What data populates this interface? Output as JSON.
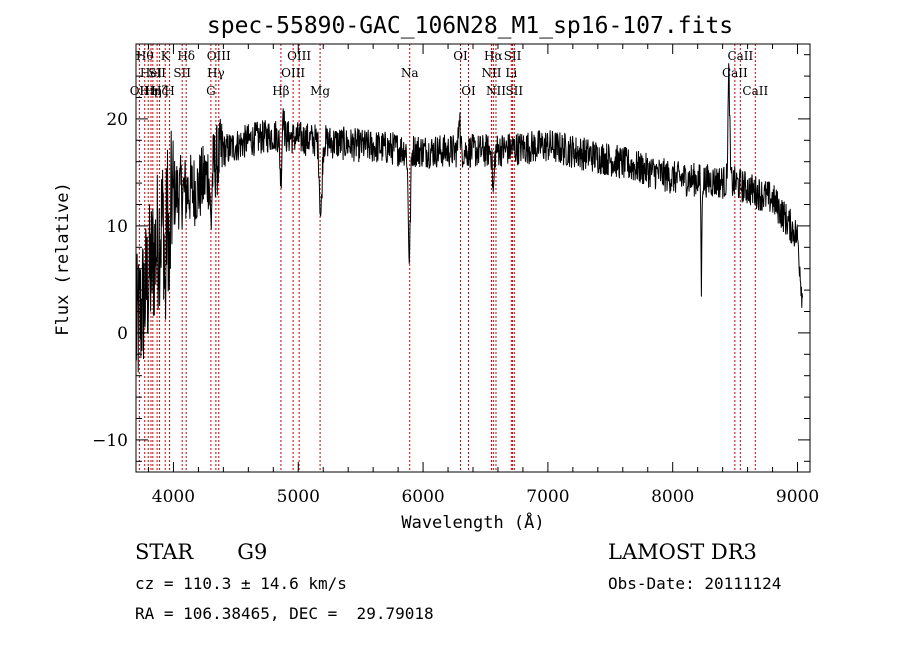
{
  "chart_data": {
    "type": "line",
    "title": "spec-55890-GAC_106N28_M1_sp16-107.fits",
    "xlabel": "Wavelength (Å)",
    "ylabel": "Flux (relative)",
    "xlim": [
      3700,
      9100
    ],
    "ylim": [
      -13,
      27
    ],
    "x_ticks": [
      4000,
      5000,
      6000,
      7000,
      8000,
      9000
    ],
    "y_ticks": [
      -10,
      0,
      10,
      20
    ],
    "x_tick_labels": [
      "4000",
      "5000",
      "6000",
      "7000",
      "8000",
      "9000"
    ],
    "y_tick_labels": [
      "−10",
      "0",
      "10",
      "20"
    ],
    "line_color": "#000000",
    "marker_color": "#cc0000",
    "continuum": [
      {
        "x": 3700,
        "y": 0
      },
      {
        "x": 3800,
        "y": 5
      },
      {
        "x": 3900,
        "y": 10
      },
      {
        "x": 4000,
        "y": 13
      },
      {
        "x": 4200,
        "y": 13.5
      },
      {
        "x": 4400,
        "y": 17
      },
      {
        "x": 4600,
        "y": 18
      },
      {
        "x": 4800,
        "y": 18.5
      },
      {
        "x": 5000,
        "y": 18.2
      },
      {
        "x": 5500,
        "y": 17.5
      },
      {
        "x": 6000,
        "y": 17
      },
      {
        "x": 6500,
        "y": 17
      },
      {
        "x": 7000,
        "y": 17.5
      },
      {
        "x": 7500,
        "y": 16.2
      },
      {
        "x": 8000,
        "y": 14.5
      },
      {
        "x": 8500,
        "y": 14
      },
      {
        "x": 8800,
        "y": 12.5
      },
      {
        "x": 9000,
        "y": 9
      },
      {
        "x": 9040,
        "y": 3
      }
    ],
    "absorption_features": [
      {
        "x": 5890,
        "depth": 10,
        "width": 12
      },
      {
        "x": 5180,
        "depth": 7,
        "width": 14
      },
      {
        "x": 8230,
        "depth": 10,
        "width": 5
      },
      {
        "x": 4860,
        "depth": 4,
        "width": 10
      },
      {
        "x": 6563,
        "depth": 4,
        "width": 10
      },
      {
        "x": 4300,
        "depth": 5,
        "width": 10
      },
      {
        "x": 3934,
        "depth": 8,
        "width": 8
      },
      {
        "x": 3969,
        "depth": 7,
        "width": 8
      }
    ],
    "emission_features": [
      {
        "x": 8450,
        "height": 10,
        "width": 10
      },
      {
        "x": 6290,
        "height": 4,
        "width": 8
      },
      {
        "x": 4880,
        "height": 3,
        "width": 8
      }
    ],
    "lines": [
      {
        "x": 3727,
        "label": "OII",
        "row": 3
      },
      {
        "x": 3770,
        "label": "Hθ",
        "row": 1
      },
      {
        "x": 3798,
        "label": "Hη",
        "row": 3
      },
      {
        "x": 3820,
        "label": "HeI",
        "row": 2
      },
      {
        "x": 3835,
        "label": "Hη",
        "row": 3
      },
      {
        "x": 3869,
        "label": "SII",
        "row": 2
      },
      {
        "x": 3889,
        "label": "Hζ",
        "row": 3
      },
      {
        "x": 3934,
        "label": "K",
        "row": 1
      },
      {
        "x": 3969,
        "label": "H",
        "row": 3
      },
      {
        "x": 4102,
        "label": "Hδ",
        "row": 1
      },
      {
        "x": 4070,
        "label": "SII",
        "row": 2
      },
      {
        "x": 4300,
        "label": "G",
        "row": 3
      },
      {
        "x": 4340,
        "label": "Hγ",
        "row": 2
      },
      {
        "x": 4363,
        "label": "OIII",
        "row": 1
      },
      {
        "x": 4861,
        "label": "Hβ",
        "row": 3
      },
      {
        "x": 4959,
        "label": "OIII",
        "row": 2
      },
      {
        "x": 5007,
        "label": "OIII",
        "row": 1
      },
      {
        "x": 5175,
        "label": "Mg",
        "row": 3
      },
      {
        "x": 5893,
        "label": "Na",
        "row": 2
      },
      {
        "x": 6300,
        "label": "OI",
        "row": 1
      },
      {
        "x": 6364,
        "label": "OI",
        "row": 3
      },
      {
        "x": 6548,
        "label": "NII",
        "row": 2
      },
      {
        "x": 6563,
        "label": "Hα",
        "row": 1
      },
      {
        "x": 6584,
        "label": "NII",
        "row": 3
      },
      {
        "x": 6707,
        "label": "Li",
        "row": 2
      },
      {
        "x": 6717,
        "label": "SII",
        "row": 1
      },
      {
        "x": 6731,
        "label": "SII",
        "row": 3
      },
      {
        "x": 8498,
        "label": "CaII",
        "row": 2
      },
      {
        "x": 8542,
        "label": "CaII",
        "row": 1
      },
      {
        "x": 8662,
        "label": "CaII",
        "row": 3
      }
    ]
  },
  "info": {
    "class_label": "STAR",
    "subclass": "G9",
    "survey": "LAMOST DR3",
    "redshift_line": "cz = 110.3 ± 14.6 km/s",
    "obs_date": "Obs-Date: 20111124",
    "coords": "RA = 106.38465, DEC =  29.79018"
  }
}
